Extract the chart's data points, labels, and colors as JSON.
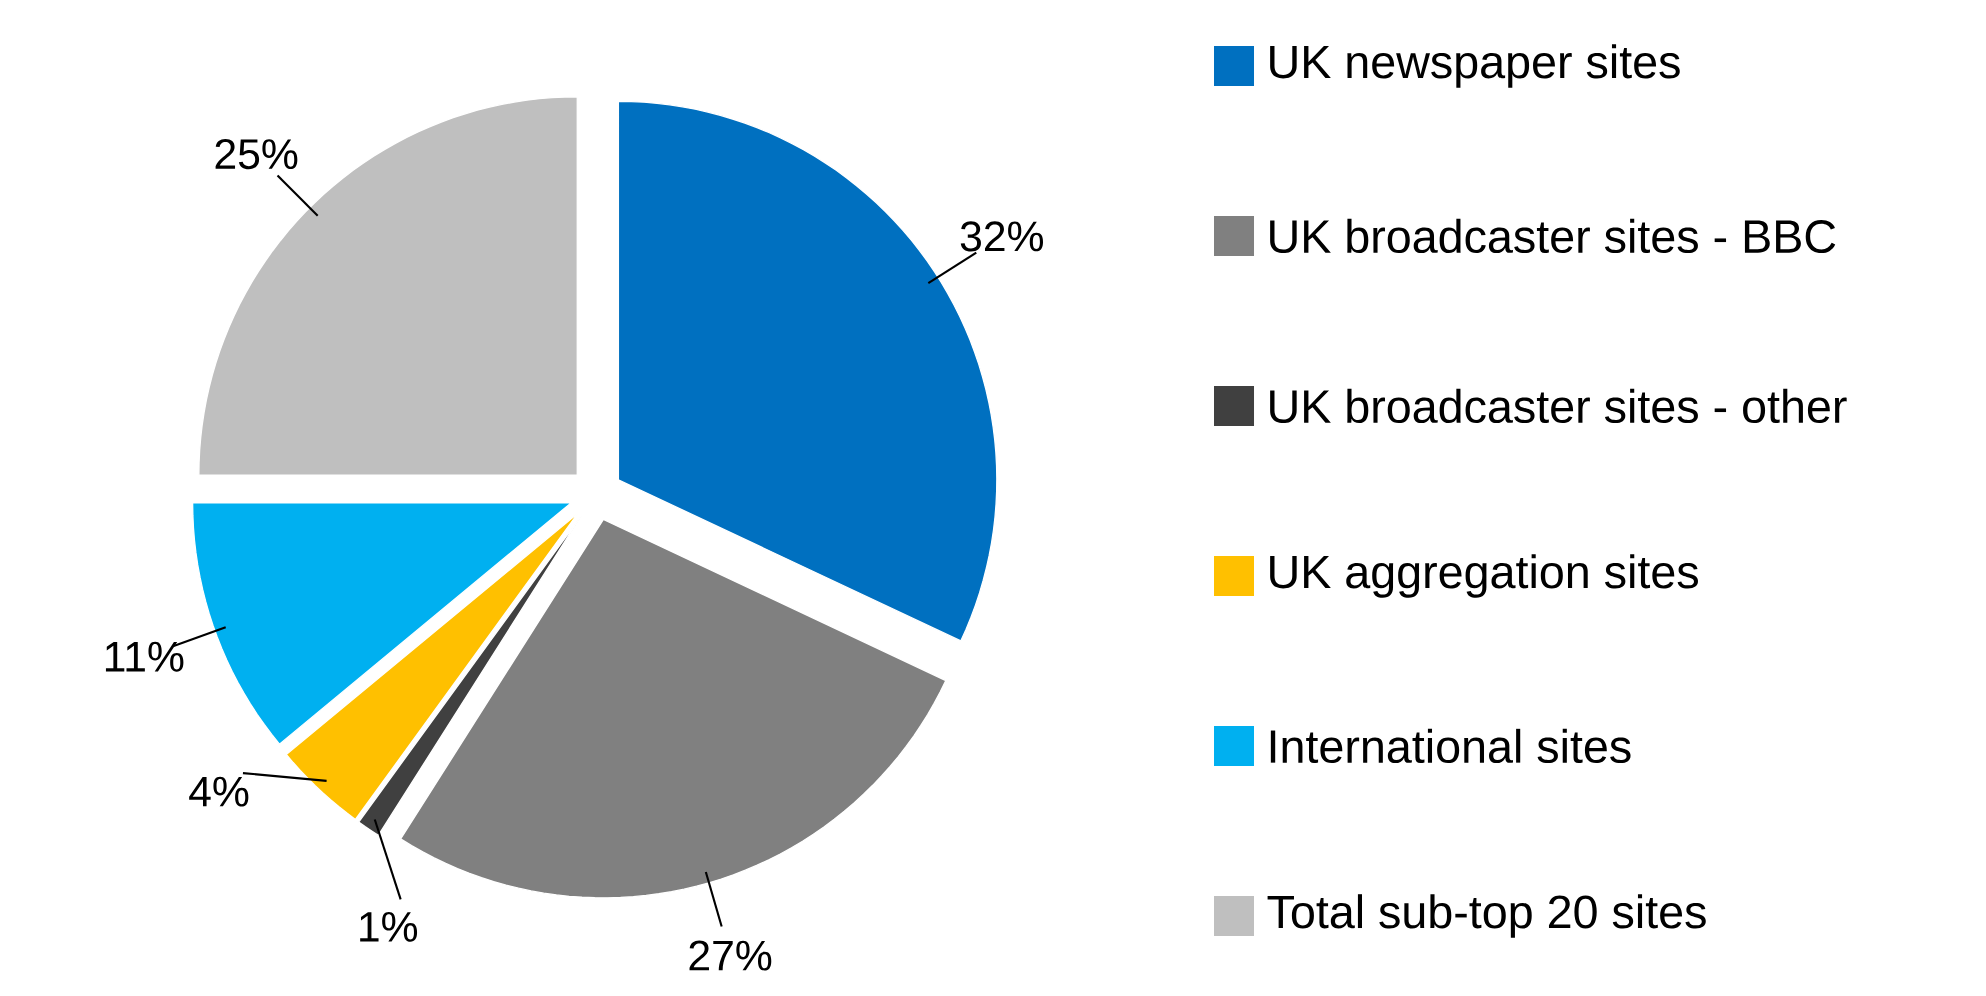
{
  "chart_data": {
    "type": "pie",
    "categories": [
      "UK newspaper sites",
      "UK broadcaster sites - BBC",
      "UK broadcaster sites - other",
      "UK aggregation sites",
      "International sites",
      "Total sub-top 20 sites"
    ],
    "values": [
      32,
      27,
      1,
      4,
      11,
      25
    ],
    "colors": [
      "#0070c0",
      "#808080",
      "#404040",
      "#ffc000",
      "#00b0f0",
      "#bfbfbf"
    ],
    "value_labels": [
      "32%",
      "27%",
      "1%",
      "4%",
      "11%",
      "25%"
    ],
    "legend": "right"
  }
}
